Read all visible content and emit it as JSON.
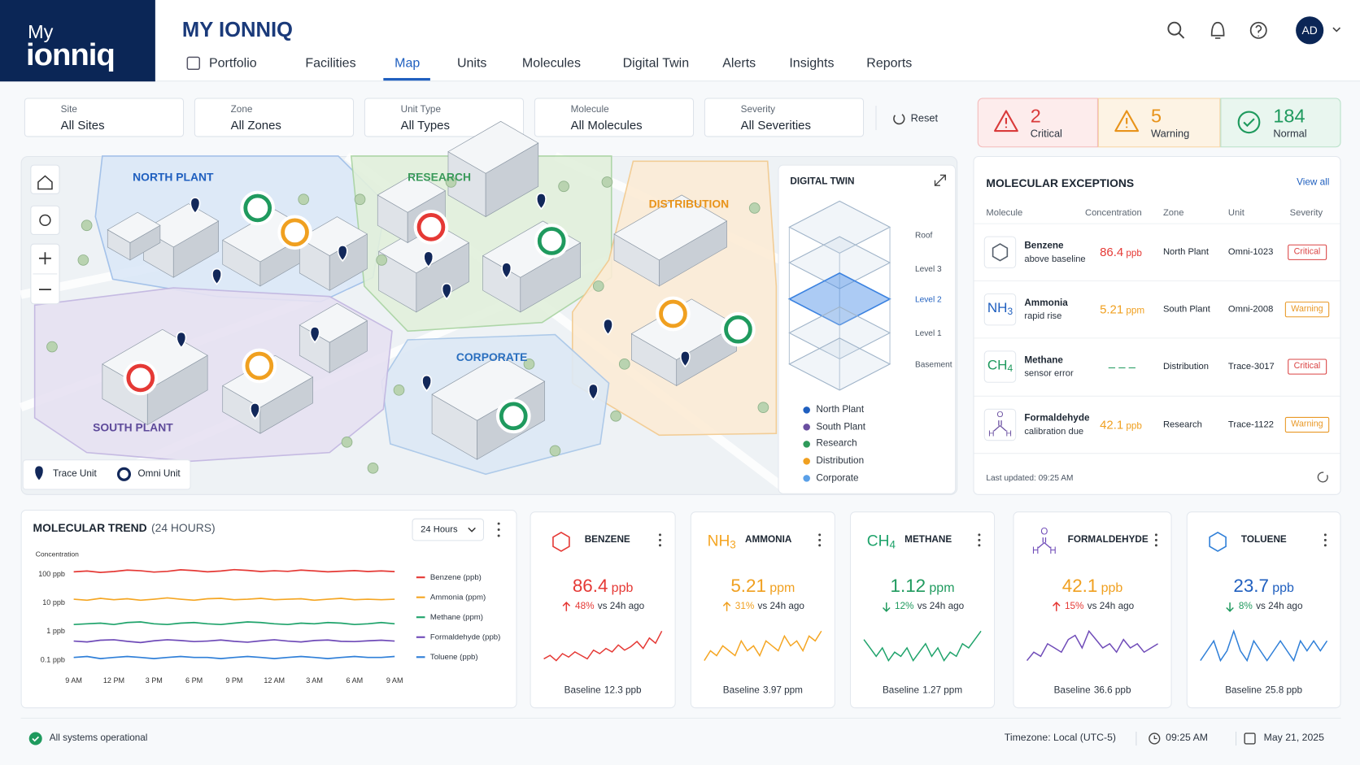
{
  "header": {
    "logo": [
      "My",
      "ionniq"
    ],
    "title": "MY IONNIQ",
    "nav": [
      "Portfolio",
      "Facilities",
      "Map",
      "Units",
      "Molecules",
      "Digital Twin",
      "Alerts",
      "Insights",
      "Reports"
    ],
    "avatar": "AD"
  },
  "filters": {
    "items": [
      {
        "label": "Site",
        "value": "All Sites"
      },
      {
        "label": "Zone",
        "value": "All Zones"
      },
      {
        "label": "Unit Type",
        "value": "All Types"
      },
      {
        "label": "Molecule",
        "value": "All Molecules"
      },
      {
        "label": "Severity",
        "value": "All Severities"
      }
    ],
    "reset": "Reset"
  },
  "status": [
    {
      "count": 2,
      "label": "Critical",
      "color": "#d93a3a",
      "bg": "#fdecec",
      "border": "#f3b9b9"
    },
    {
      "count": 5,
      "label": "Warning",
      "color": "#e8931a",
      "bg": "#fdf3e4",
      "border": "#f6d7a8"
    },
    {
      "count": 184,
      "label": "Normal",
      "color": "#1f9a5e",
      "bg": "#e9f6ef",
      "border": "#b8e0c8"
    }
  ],
  "map": {
    "regions": [
      {
        "name": "NORTH PLANT",
        "color": "#1f5fbf"
      },
      {
        "name": "RESEARCH",
        "color": "#3a9a5a"
      },
      {
        "name": "DISTRIBUTION",
        "color": "#e8931a"
      },
      {
        "name": "CORPORATE",
        "color": "#2a6fbf"
      },
      {
        "name": "SOUTH PLANT",
        "color": "#5e4a9a"
      }
    ],
    "legend": [
      "Trace Unit",
      "Omni Unit"
    ]
  },
  "digital_twin": {
    "title": "DIGITAL TWIN",
    "levels": [
      "Roof",
      "Level 3",
      "Level 2",
      "Level 1",
      "Basement"
    ],
    "legend": [
      {
        "name": "North Plant",
        "color": "#1f5fbf"
      },
      {
        "name": "South Plant",
        "color": "#6a4fa0"
      },
      {
        "name": "Research",
        "color": "#2e9a5a"
      },
      {
        "name": "Distribution",
        "color": "#f0a020"
      },
      {
        "name": "Corporate",
        "color": "#5aa0e8"
      }
    ]
  },
  "exceptions": {
    "title": "MOLECULAR EXCEPTIONS",
    "view_all": "View all",
    "columns": [
      "Molecule",
      "Concentration",
      "Zone",
      "Unit",
      "Severity"
    ],
    "rows": [
      {
        "name": "Benzene",
        "note": "above baseline",
        "value": 86.4,
        "unit": "ppb",
        "color": "#e53935",
        "icon_color": "#555f6b",
        "zone": "North Plant",
        "unit_id": "Omni-1023",
        "severity": "Critical",
        "severity_color": "#d93a3a"
      },
      {
        "name": "Ammonia",
        "formula": [
          "NH",
          "3"
        ],
        "note": "rapid rise",
        "value": 5.21,
        "unit": "ppm",
        "color": "#f0a020",
        "icon_color": "#1f5fbf",
        "zone": "South Plant",
        "unit_id": "Omni-2008",
        "severity": "Warning",
        "severity_color": "#e8931a"
      },
      {
        "name": "Methane",
        "formula": [
          "CH",
          "4"
        ],
        "note": "sensor error",
        "value": "– – –",
        "color": "#1f9a5e",
        "icon_color": "#1f9a5e",
        "zone": "Distribution",
        "unit_id": "Trace-3017",
        "severity": "Critical",
        "severity_color": "#d93a3a"
      },
      {
        "name": "Formaldehyde",
        "atoms": [
          "O",
          "H",
          "H"
        ],
        "note": "calibration due",
        "value": 42.1,
        "unit": "ppb",
        "color": "#f0a020",
        "icon_color": "#6a4fa0",
        "zone": "Research",
        "unit_id": "Trace-1122",
        "severity": "Warning",
        "severity_color": "#e8931a"
      }
    ],
    "updated": "Last updated: 09:25 AM"
  },
  "chart_data": {
    "type": "line",
    "title": "MOLECULAR TREND",
    "subtitle": "(24 HOURS)",
    "range": "24 Hours",
    "y_label": "Concentration",
    "log_scale": true,
    "ylim": [
      0.05,
      200
    ],
    "yticks": [
      {
        "value": 0.1,
        "label": "0.1 ppb"
      },
      {
        "value": 1,
        "label": "1 ppb"
      },
      {
        "value": 10,
        "label": "10 ppb"
      },
      {
        "value": 100,
        "label": "100 ppb"
      }
    ],
    "xlim": [
      0,
      24
    ],
    "xticks": [
      {
        "value": 0,
        "label": "9 AM"
      },
      {
        "value": 3,
        "label": "12 PM"
      },
      {
        "value": 6,
        "label": "3 PM"
      },
      {
        "value": 9,
        "label": "6 PM"
      },
      {
        "value": 12,
        "label": "9 PM"
      },
      {
        "value": 15,
        "label": "12 AM"
      },
      {
        "value": 18,
        "label": "3 AM"
      },
      {
        "value": 21,
        "label": "6 AM"
      },
      {
        "value": 24,
        "label": "9 AM"
      }
    ],
    "x": [
      0,
      1,
      2,
      3,
      4,
      5,
      6,
      7,
      8,
      9,
      10,
      11,
      12,
      13,
      14,
      15,
      16,
      17,
      18,
      19,
      20,
      21,
      22,
      23,
      24
    ],
    "series": [
      {
        "name": "Benzene (ppb)",
        "color": "#e53935",
        "values": [
          118,
          125,
          112,
          120,
          135,
          128,
          115,
          122,
          138,
          130,
          118,
          125,
          140,
          132,
          120,
          128,
          122,
          135,
          126,
          118,
          124,
          130,
          120,
          126,
          119
        ]
      },
      {
        "name": "Ammonia (ppm)",
        "color": "#f5a623",
        "values": [
          13,
          12,
          14,
          12.5,
          13.5,
          12,
          13,
          14.5,
          13,
          12,
          13.5,
          14,
          12.5,
          13,
          14,
          12.5,
          13,
          13.5,
          12,
          13,
          14,
          12.5,
          13,
          12.5,
          13
        ]
      },
      {
        "name": "Methane (ppm)",
        "color": "#1fa36b",
        "values": [
          1.7,
          1.8,
          1.9,
          1.7,
          2.0,
          2.1,
          1.8,
          1.7,
          1.9,
          2.0,
          1.8,
          1.7,
          1.9,
          2.1,
          2.0,
          1.8,
          1.7,
          1.9,
          1.8,
          2.0,
          1.9,
          1.7,
          1.8,
          2.0,
          1.8
        ]
      },
      {
        "name": "Formaldehyde (ppb)",
        "color": "#6f4bb8",
        "values": [
          0.45,
          0.42,
          0.48,
          0.5,
          0.44,
          0.4,
          0.46,
          0.5,
          0.47,
          0.43,
          0.45,
          0.49,
          0.44,
          0.41,
          0.46,
          0.5,
          0.45,
          0.42,
          0.47,
          0.49,
          0.44,
          0.43,
          0.46,
          0.48,
          0.45
        ]
      },
      {
        "name": "Toluene (ppb)",
        "color": "#2f7fd8",
        "values": [
          0.12,
          0.13,
          0.11,
          0.12,
          0.13,
          0.12,
          0.11,
          0.12,
          0.13,
          0.12,
          0.12,
          0.11,
          0.12,
          0.13,
          0.12,
          0.11,
          0.12,
          0.13,
          0.12,
          0.11,
          0.12,
          0.13,
          0.12,
          0.12,
          0.13
        ]
      }
    ]
  },
  "cards": [
    {
      "name": "BENZENE",
      "value": 86.4,
      "unit": "ppb",
      "color": "#e53935",
      "direction": "up",
      "change": "48%",
      "change_color": "#e53935",
      "compare": "vs 24h ago",
      "line_color": "#e53935",
      "baseline_label": "Baseline",
      "baseline": 12.3,
      "spark": [
        10,
        12,
        9,
        13,
        11,
        14,
        12,
        10,
        15,
        13,
        16,
        14,
        18,
        15,
        17,
        20,
        16,
        22,
        19,
        26
      ]
    },
    {
      "name": "AMMONIA",
      "formula": [
        "NH",
        "3"
      ],
      "value": 5.21,
      "unit": "ppm",
      "color": "#f0a020",
      "direction": "up",
      "change": "31%",
      "change_color": "#f0a020",
      "compare": "vs 24h ago",
      "line_color": "#f5a623",
      "baseline_label": "Baseline",
      "baseline": 3.97,
      "spark": [
        10,
        12,
        11,
        13,
        12,
        11,
        14,
        12,
        13,
        11,
        14,
        13,
        12,
        15,
        13,
        14,
        12,
        15,
        14,
        16
      ]
    },
    {
      "name": "METHANE",
      "formula": [
        "CH",
        "4"
      ],
      "value": 1.12,
      "unit": "ppm",
      "color": "#1f9a5e",
      "direction": "down",
      "change": "12%",
      "change_color": "#1f9a5e",
      "compare": "vs 24h ago",
      "line_color": "#1fa36b",
      "baseline_label": "Baseline",
      "baseline": 1.27,
      "spark": [
        14,
        12,
        10,
        12,
        9,
        11,
        10,
        12,
        9,
        11,
        13,
        10,
        12,
        9,
        11,
        10,
        13,
        12,
        14,
        16
      ]
    },
    {
      "name": "FORMALDEHYDE",
      "atoms": [
        "O",
        "H",
        "H"
      ],
      "value": 42.1,
      "unit": "ppb",
      "color": "#f0a020",
      "direction": "up",
      "change": "15%",
      "change_color": "#e53935",
      "compare": "vs 24h ago",
      "line_color": "#6f4bb8",
      "baseline_label": "Baseline",
      "baseline": 36.6,
      "spark": [
        10,
        12,
        11,
        14,
        13,
        12,
        15,
        16,
        13,
        17,
        15,
        13,
        14,
        12,
        15,
        13,
        14,
        12,
        13,
        14
      ]
    },
    {
      "name": "TOLUENE",
      "value": 23.7,
      "unit": "ppb",
      "color": "#1f5fbf",
      "direction": "down",
      "change": "8%",
      "change_color": "#1f9a5e",
      "compare": "vs 24h ago",
      "line_color": "#2f7fd8",
      "baseline_label": "Baseline",
      "baseline": 25.8,
      "spark": [
        12,
        13,
        14,
        12,
        13,
        15,
        13,
        12,
        14,
        13,
        12,
        13,
        14,
        13,
        12,
        14,
        13,
        14,
        13,
        14
      ]
    }
  ],
  "footer": {
    "status": "All systems operational",
    "timezone": "Timezone: Local (UTC-5)",
    "time": "09:25 AM",
    "date": "May 21, 2025"
  }
}
